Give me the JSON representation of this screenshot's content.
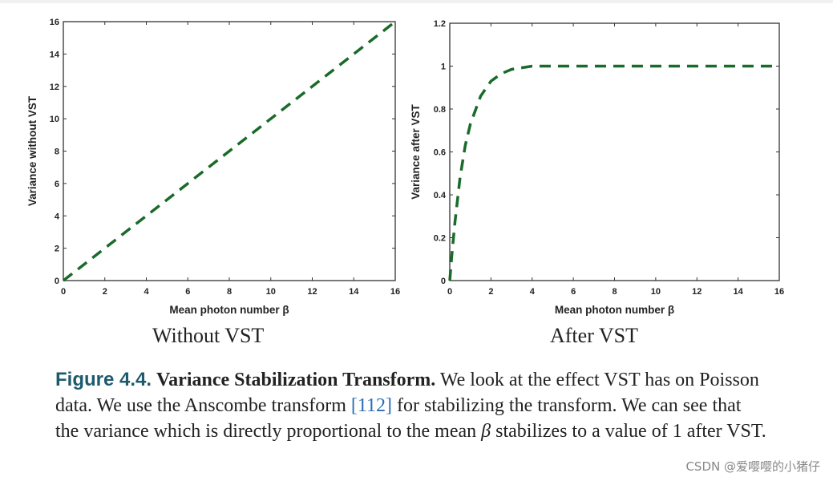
{
  "chart_data": [
    {
      "type": "line",
      "title": "Without VST",
      "xlabel": "Mean photon number β",
      "ylabel": "Variance without VST",
      "xlim": [
        0,
        16
      ],
      "ylim": [
        0,
        16
      ],
      "xticks": [
        "0",
        "2",
        "4",
        "6",
        "8",
        "10",
        "12",
        "14",
        "16"
      ],
      "yticks": [
        "0",
        "2",
        "4",
        "6",
        "8",
        "10",
        "12",
        "14",
        "16"
      ],
      "series": [
        {
          "name": "variance",
          "style": "dashed",
          "color": "#1a6b2a",
          "x": [
            0,
            16
          ],
          "y": [
            0,
            16
          ]
        }
      ]
    },
    {
      "type": "line",
      "title": "After VST",
      "xlabel": "Mean photon number β",
      "ylabel": "Variance after VST",
      "xlim": [
        0,
        16
      ],
      "ylim": [
        0,
        1.2
      ],
      "xticks": [
        "0",
        "2",
        "4",
        "6",
        "8",
        "10",
        "12",
        "14",
        "16"
      ],
      "yticks": [
        "0",
        "0.2",
        "0.4",
        "0.6",
        "0.8",
        "1",
        "1.2"
      ],
      "series": [
        {
          "name": "variance",
          "style": "dashed",
          "color": "#1a6b2a",
          "x": [
            0,
            0.1,
            0.25,
            0.5,
            0.75,
            1,
            1.5,
            2,
            2.5,
            3,
            4,
            5,
            6,
            8,
            10,
            12,
            14,
            16
          ],
          "y": [
            0,
            0.12,
            0.27,
            0.48,
            0.63,
            0.73,
            0.86,
            0.93,
            0.965,
            0.985,
            1.0,
            1.0,
            1.0,
            1.0,
            1.0,
            1.0,
            1.0,
            1.0
          ]
        }
      ]
    }
  ],
  "caption": {
    "label": "Figure 4.4.",
    "title": "Variance Stabilization Transform.",
    "text1": " We look at the effect VST has on Poisson data. We use the Anscombe transform ",
    "ref": "[112]",
    "text2": " for stabilizing the transform. We can see that the variance which is directly proportional to the mean ",
    "beta": "β",
    "text3": " stabilizes to a value of 1 after VST."
  },
  "watermark": "CSDN @爱嘤嘤的小猪仔"
}
